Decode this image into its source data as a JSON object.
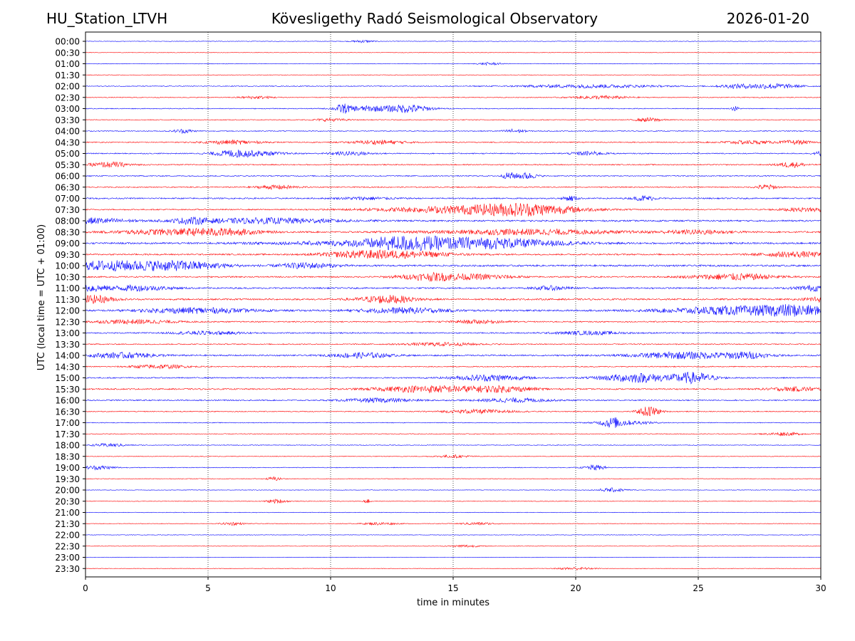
{
  "header": {
    "station": "HU_Station_LTVH",
    "observatory": "Kövesligethy Radó Seismological Observatory",
    "date": "2026-01-20"
  },
  "chart_data": {
    "type": "line",
    "title": "Kövesligethy Radó Seismological Observatory",
    "xlabel": "time in minutes",
    "ylabel": "UTC (local time = UTC + 01:00)",
    "xlim": [
      0,
      30
    ],
    "x_ticks": [
      0,
      5,
      10,
      15,
      20,
      25,
      30
    ],
    "vertical_gridlines_at": [
      5,
      10,
      15,
      20,
      25
    ],
    "colors": {
      "even_rows": "#0000ff",
      "odd_rows": "#ff0000"
    },
    "rows": [
      {
        "label": "00:00",
        "noise": 0.8,
        "events": [
          [
            11.3,
            0.3,
            2
          ]
        ]
      },
      {
        "label": "00:30",
        "noise": 0.8,
        "events": []
      },
      {
        "label": "01:00",
        "noise": 0.9,
        "events": [
          [
            16.5,
            0.3,
            2
          ]
        ]
      },
      {
        "label": "01:30",
        "noise": 0.8,
        "events": []
      },
      {
        "label": "02:00",
        "noise": 1.2,
        "events": [
          [
            20.5,
            2,
            2.5
          ],
          [
            26.5,
            0.5,
            2.5
          ],
          [
            28,
            0.8,
            4
          ]
        ]
      },
      {
        "label": "02:30",
        "noise": 1.2,
        "events": [
          [
            21,
            0.8,
            2.5
          ],
          [
            7,
            0.5,
            2
          ]
        ]
      },
      {
        "label": "03:00",
        "noise": 1.2,
        "events": [
          [
            10.5,
            0.2,
            6
          ],
          [
            11.5,
            0.8,
            4
          ],
          [
            13.2,
            0.6,
            6
          ],
          [
            26.5,
            0.1,
            4
          ]
        ]
      },
      {
        "label": "03:30",
        "noise": 1.2,
        "events": [
          [
            23,
            0.4,
            3
          ],
          [
            10,
            0.5,
            2
          ]
        ]
      },
      {
        "label": "04:00",
        "noise": 1.3,
        "events": [
          [
            4,
            0.3,
            3
          ],
          [
            17.5,
            0.3,
            3
          ]
        ]
      },
      {
        "label": "04:30",
        "noise": 1.5,
        "events": [
          [
            6,
            0.8,
            3
          ],
          [
            12,
            0.8,
            3
          ],
          [
            27,
            0.8,
            2.5
          ],
          [
            29,
            0.4,
            3
          ]
        ]
      },
      {
        "label": "05:00",
        "noise": 1.6,
        "events": [
          [
            6,
            0.6,
            4
          ],
          [
            7,
            0.8,
            3
          ],
          [
            10.8,
            0.6,
            3
          ],
          [
            20.5,
            0.5,
            3
          ],
          [
            30,
            0.2,
            3
          ]
        ]
      },
      {
        "label": "05:30",
        "noise": 1.6,
        "events": [
          [
            1,
            0.6,
            4
          ],
          [
            28.8,
            0.4,
            4
          ]
        ]
      },
      {
        "label": "06:00",
        "noise": 1.6,
        "events": [
          [
            17.3,
            0.2,
            5
          ],
          [
            18,
            0.3,
            5
          ]
        ]
      },
      {
        "label": "06:30",
        "noise": 1.6,
        "events": [
          [
            7.8,
            0.6,
            3
          ],
          [
            27.8,
            0.3,
            4
          ]
        ]
      },
      {
        "label": "07:00",
        "noise": 2.0,
        "events": [
          [
            19.8,
            0.2,
            4
          ],
          [
            22.8,
            0.3,
            4
          ],
          [
            11.5,
            0.8,
            2
          ]
        ]
      },
      {
        "label": "07:30",
        "noise": 1.8,
        "events": [
          [
            15.5,
            2.5,
            5
          ],
          [
            18,
            1.5,
            7
          ],
          [
            29.5,
            0.8,
            3
          ]
        ]
      },
      {
        "label": "08:00",
        "noise": 2.4,
        "events": [
          [
            0.3,
            1,
            4
          ],
          [
            4.3,
            0.5,
            4
          ],
          [
            7.5,
            2,
            4
          ]
        ]
      },
      {
        "label": "08:30",
        "noise": 2.4,
        "events": [
          [
            3.5,
            1.5,
            4
          ],
          [
            5.8,
            1,
            4
          ],
          [
            18,
            2.5,
            4
          ],
          [
            25,
            1,
            3
          ]
        ]
      },
      {
        "label": "09:00",
        "noise": 2.6,
        "events": [
          [
            13,
            1.2,
            7
          ],
          [
            16.5,
            2,
            7
          ],
          [
            12,
            3,
            3
          ]
        ]
      },
      {
        "label": "09:30",
        "noise": 2.2,
        "events": [
          [
            12.8,
            1.5,
            5
          ],
          [
            29,
            1,
            4
          ],
          [
            11,
            1,
            3
          ]
        ]
      },
      {
        "label": "10:00",
        "noise": 2.6,
        "events": [
          [
            1,
            1.5,
            7
          ],
          [
            4,
            1.2,
            6
          ],
          [
            9,
            0.8,
            4
          ]
        ]
      },
      {
        "label": "10:30",
        "noise": 2.0,
        "events": [
          [
            14.3,
            1,
            6
          ],
          [
            26.5,
            1.2,
            5
          ],
          [
            16.5,
            0.8,
            3
          ]
        ]
      },
      {
        "label": "11:00",
        "noise": 2.2,
        "events": [
          [
            0.3,
            0.3,
            5
          ],
          [
            2,
            1,
            4
          ],
          [
            29.8,
            0.6,
            4
          ],
          [
            19,
            0.5,
            3
          ]
        ]
      },
      {
        "label": "11:30",
        "noise": 2.4,
        "events": [
          [
            0.3,
            0.6,
            6
          ],
          [
            12.3,
            0.8,
            6
          ],
          [
            29.8,
            0.3,
            4
          ]
        ]
      },
      {
        "label": "12:00",
        "noise": 2.6,
        "events": [
          [
            4.5,
            1.5,
            4
          ],
          [
            13,
            1.2,
            4
          ],
          [
            26.3,
            1.8,
            6
          ],
          [
            29,
            1,
            7
          ]
        ]
      },
      {
        "label": "12:30",
        "noise": 1.8,
        "events": [
          [
            2,
            1.2,
            3
          ],
          [
            16,
            0.8,
            2.5
          ]
        ]
      },
      {
        "label": "13:00",
        "noise": 1.8,
        "events": [
          [
            5,
            1,
            2.5
          ],
          [
            20.5,
            1,
            2.5
          ]
        ]
      },
      {
        "label": "13:30",
        "noise": 1.6,
        "events": [
          [
            14.5,
            1,
            2.5
          ]
        ]
      },
      {
        "label": "14:00",
        "noise": 2.2,
        "events": [
          [
            1.5,
            1,
            4
          ],
          [
            11.3,
            0.8,
            4
          ],
          [
            24.5,
            1.5,
            5
          ],
          [
            27,
            0.6,
            4
          ]
        ]
      },
      {
        "label": "14:30",
        "noise": 1.5,
        "events": [
          [
            3,
            0.8,
            3
          ]
        ]
      },
      {
        "label": "15:00",
        "noise": 1.8,
        "events": [
          [
            16.5,
            1,
            5
          ],
          [
            22.5,
            1,
            7
          ],
          [
            24.8,
            0.6,
            8
          ]
        ]
      },
      {
        "label": "15:30",
        "noise": 2.0,
        "events": [
          [
            14,
            1.5,
            5
          ],
          [
            17,
            1,
            4
          ],
          [
            29,
            0.8,
            3
          ]
        ]
      },
      {
        "label": "16:00",
        "noise": 1.8,
        "events": [
          [
            12,
            1,
            3
          ],
          [
            17.5,
            1,
            3
          ]
        ]
      },
      {
        "label": "16:30",
        "noise": 1.4,
        "events": [
          [
            23,
            0.3,
            8
          ],
          [
            16,
            1,
            3
          ]
        ]
      },
      {
        "label": "17:00",
        "noise": 1.1,
        "events": [
          [
            21.5,
            0.3,
            6
          ],
          [
            22,
            0.8,
            3
          ]
        ]
      },
      {
        "label": "17:30",
        "noise": 1.1,
        "events": [
          [
            28.5,
            0.5,
            2.5
          ]
        ]
      },
      {
        "label": "18:00",
        "noise": 1.0,
        "events": [
          [
            1,
            0.5,
            2.5
          ]
        ]
      },
      {
        "label": "18:30",
        "noise": 1.0,
        "events": [
          [
            15,
            0.5,
            2
          ]
        ]
      },
      {
        "label": "19:00",
        "noise": 1.1,
        "events": [
          [
            0.5,
            0.5,
            3
          ],
          [
            20.8,
            0.3,
            4
          ]
        ]
      },
      {
        "label": "19:30",
        "noise": 0.9,
        "events": [
          [
            7.7,
            0.2,
            3
          ]
        ]
      },
      {
        "label": "20:00",
        "noise": 0.8,
        "events": [
          [
            21.5,
            0.4,
            3
          ]
        ]
      },
      {
        "label": "20:30",
        "noise": 0.9,
        "events": [
          [
            7.8,
            0.3,
            3
          ],
          [
            11.5,
            0.1,
            3
          ]
        ]
      },
      {
        "label": "21:00",
        "noise": 0.9,
        "events": []
      },
      {
        "label": "21:30",
        "noise": 0.9,
        "events": [
          [
            6,
            0.3,
            2.5
          ],
          [
            12,
            0.5,
            2
          ],
          [
            16,
            0.5,
            2
          ]
        ]
      },
      {
        "label": "22:00",
        "noise": 0.8,
        "events": []
      },
      {
        "label": "22:30",
        "noise": 0.8,
        "events": [
          [
            15.5,
            0.4,
            2
          ]
        ]
      },
      {
        "label": "23:00",
        "noise": 0.7,
        "events": []
      },
      {
        "label": "23:30",
        "noise": 0.8,
        "events": [
          [
            20,
            0.5,
            2
          ]
        ]
      }
    ]
  }
}
